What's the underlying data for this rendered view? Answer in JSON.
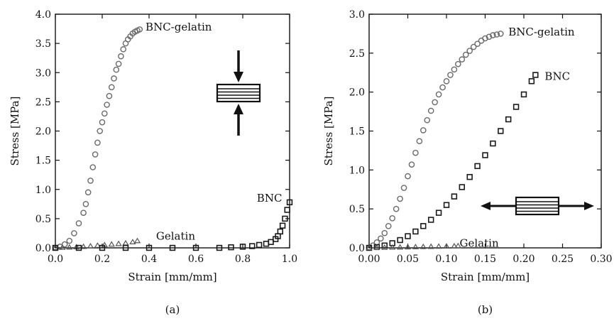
{
  "chart_data": [
    {
      "type": "scatter",
      "panel_label": "(a)",
      "xlabel": "Strain [mm/mm]",
      "ylabel": "Stress [MPa]",
      "xlim": [
        0.0,
        1.0
      ],
      "ylim": [
        0.0,
        4.0
      ],
      "xticks": [
        "0.0",
        "0.2",
        "0.4",
        "0.6",
        "0.8",
        "1.0"
      ],
      "yticks": [
        "0.0",
        "0.5",
        "1.0",
        "1.5",
        "2.0",
        "2.5",
        "3.0",
        "3.5",
        "4.0"
      ],
      "icon": "compression-arrows-icon",
      "series": [
        {
          "name": "BNC-gelatin",
          "marker": "circle",
          "x": [
            0.0,
            0.02,
            0.04,
            0.06,
            0.08,
            0.1,
            0.12,
            0.13,
            0.14,
            0.15,
            0.16,
            0.17,
            0.18,
            0.19,
            0.2,
            0.21,
            0.22,
            0.23,
            0.24,
            0.25,
            0.26,
            0.27,
            0.28,
            0.29,
            0.3,
            0.31,
            0.32,
            0.33,
            0.34,
            0.35,
            0.36
          ],
          "y": [
            0.0,
            0.02,
            0.06,
            0.12,
            0.25,
            0.42,
            0.6,
            0.75,
            0.95,
            1.15,
            1.38,
            1.6,
            1.8,
            2.0,
            2.15,
            2.3,
            2.45,
            2.6,
            2.75,
            2.9,
            3.05,
            3.15,
            3.28,
            3.4,
            3.5,
            3.57,
            3.62,
            3.67,
            3.7,
            3.72,
            3.74
          ]
        },
        {
          "name": "Gelatin",
          "marker": "triangle",
          "x": [
            0.0,
            0.03,
            0.06,
            0.09,
            0.12,
            0.15,
            0.18,
            0.21,
            0.24,
            0.27,
            0.3,
            0.33,
            0.35
          ],
          "y": [
            0.0,
            0.005,
            0.01,
            0.015,
            0.02,
            0.03,
            0.04,
            0.05,
            0.06,
            0.07,
            0.08,
            0.1,
            0.12
          ]
        },
        {
          "name": "BNC",
          "marker": "square",
          "x": [
            0.0,
            0.1,
            0.2,
            0.3,
            0.4,
            0.5,
            0.6,
            0.7,
            0.75,
            0.8,
            0.84,
            0.87,
            0.9,
            0.92,
            0.94,
            0.95,
            0.96,
            0.97,
            0.98,
            0.99,
            1.0
          ],
          "y": [
            0.0,
            0.0,
            0.0,
            0.0,
            0.0,
            0.0,
            0.0,
            0.0,
            0.01,
            0.02,
            0.03,
            0.05,
            0.07,
            0.1,
            0.15,
            0.2,
            0.28,
            0.38,
            0.5,
            0.65,
            0.78
          ]
        }
      ],
      "annotations": [
        {
          "text": "BNC-gelatin",
          "x": 0.385,
          "y": 3.78
        },
        {
          "text": "Gelatin",
          "x": 0.43,
          "y": 0.2
        },
        {
          "text": "BNC",
          "x": 0.86,
          "y": 0.85
        }
      ]
    },
    {
      "type": "scatter",
      "panel_label": "(b)",
      "xlabel": "Strain [mm/mm]",
      "ylabel": "Stress [MPa]",
      "xlim": [
        0.0,
        0.3
      ],
      "ylim": [
        0.0,
        3.0
      ],
      "xticks": [
        "0.00",
        "0.05",
        "0.10",
        "0.15",
        "0.20",
        "0.25",
        "0.30"
      ],
      "yticks": [
        "0.0",
        "0.5",
        "1.0",
        "1.5",
        "2.0",
        "2.5",
        "3.0"
      ],
      "icon": "tension-arrows-icon",
      "series": [
        {
          "name": "BNC-gelatin",
          "marker": "circle",
          "x": [
            0.0,
            0.005,
            0.01,
            0.015,
            0.02,
            0.025,
            0.03,
            0.035,
            0.04,
            0.045,
            0.05,
            0.055,
            0.06,
            0.065,
            0.07,
            0.075,
            0.08,
            0.085,
            0.09,
            0.095,
            0.1,
            0.105,
            0.11,
            0.115,
            0.12,
            0.125,
            0.13,
            0.135,
            0.14,
            0.145,
            0.15,
            0.155,
            0.16,
            0.165,
            0.17
          ],
          "y": [
            0.0,
            0.03,
            0.07,
            0.12,
            0.19,
            0.28,
            0.38,
            0.5,
            0.63,
            0.77,
            0.92,
            1.07,
            1.22,
            1.37,
            1.51,
            1.64,
            1.76,
            1.87,
            1.97,
            2.06,
            2.14,
            2.22,
            2.29,
            2.36,
            2.42,
            2.48,
            2.53,
            2.58,
            2.62,
            2.66,
            2.69,
            2.71,
            2.73,
            2.74,
            2.75
          ]
        },
        {
          "name": "BNC",
          "marker": "square",
          "x": [
            0.0,
            0.01,
            0.02,
            0.03,
            0.04,
            0.05,
            0.06,
            0.07,
            0.08,
            0.09,
            0.1,
            0.11,
            0.12,
            0.13,
            0.14,
            0.15,
            0.16,
            0.17,
            0.18,
            0.19,
            0.2,
            0.21,
            0.215
          ],
          "y": [
            0.0,
            0.01,
            0.03,
            0.06,
            0.1,
            0.15,
            0.21,
            0.28,
            0.36,
            0.45,
            0.55,
            0.66,
            0.78,
            0.91,
            1.05,
            1.19,
            1.34,
            1.5,
            1.65,
            1.81,
            1.97,
            2.14,
            2.22
          ]
        },
        {
          "name": "Gelatin",
          "marker": "triangle",
          "x": [
            0.0,
            0.01,
            0.02,
            0.03,
            0.04,
            0.05,
            0.06,
            0.07,
            0.08,
            0.09,
            0.1,
            0.11,
            0.115
          ],
          "y": [
            0.0,
            0.002,
            0.004,
            0.006,
            0.008,
            0.01,
            0.012,
            0.014,
            0.016,
            0.018,
            0.02,
            0.022,
            0.025
          ]
        }
      ],
      "annotations": [
        {
          "text": "BNC-gelatin",
          "x": 0.18,
          "y": 2.77
        },
        {
          "text": "BNC",
          "x": 0.227,
          "y": 2.2
        },
        {
          "text": "Gelatin",
          "x": 0.117,
          "y": 0.06
        }
      ]
    }
  ]
}
